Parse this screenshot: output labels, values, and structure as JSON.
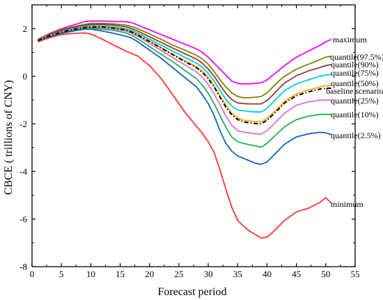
{
  "chart_data": {
    "type": "line",
    "xlabel": "Forecast period",
    "ylabel": "CBCE ( trillions of CNY)",
    "xlim": [
      0,
      55
    ],
    "ylim": [
      -8,
      3
    ],
    "xticks": [
      0,
      5,
      10,
      15,
      20,
      25,
      30,
      35,
      40,
      45,
      50,
      55
    ],
    "yticks": [
      -8,
      -6,
      -4,
      -2,
      0,
      2
    ],
    "grid": false,
    "legend": "inline labels at right end of each series",
    "x": [
      1,
      3,
      5,
      7,
      9,
      10,
      12,
      14,
      16,
      17,
      18,
      20,
      22,
      24,
      26,
      28,
      29,
      30,
      31,
      32,
      33,
      34,
      35,
      36,
      37,
      38,
      39,
      40,
      41,
      42,
      43,
      45,
      47,
      49,
      50,
      51
    ],
    "series": [
      {
        "name": "maximum",
        "color": "#ff00ff",
        "dash": "solid",
        "values": [
          1.55,
          1.8,
          2.0,
          2.15,
          2.3,
          2.32,
          2.32,
          2.3,
          2.29,
          2.25,
          2.15,
          1.95,
          1.75,
          1.55,
          1.35,
          1.15,
          1.0,
          0.8,
          0.55,
          0.3,
          0.05,
          -0.2,
          -0.3,
          -0.32,
          -0.32,
          -0.3,
          -0.28,
          -0.15,
          0.05,
          0.25,
          0.45,
          0.8,
          1.05,
          1.3,
          1.45,
          1.55
        ]
      },
      {
        "name": "quantile(97.5%)",
        "color": "#808000",
        "dash": "solid",
        "values": [
          1.55,
          1.78,
          1.95,
          2.08,
          2.18,
          2.22,
          2.22,
          2.2,
          2.15,
          2.08,
          2.0,
          1.78,
          1.55,
          1.3,
          1.1,
          0.88,
          0.72,
          0.5,
          0.2,
          -0.15,
          -0.45,
          -0.7,
          -0.85,
          -0.9,
          -0.9,
          -0.88,
          -0.85,
          -0.7,
          -0.45,
          -0.2,
          0.0,
          0.3,
          0.5,
          0.7,
          0.8,
          0.85
        ]
      },
      {
        "name": "quantile(90%)",
        "color": "#8b3a3a",
        "dash": "solid",
        "values": [
          1.53,
          1.75,
          1.92,
          2.05,
          2.15,
          2.18,
          2.18,
          2.15,
          2.08,
          2.0,
          1.9,
          1.66,
          1.42,
          1.18,
          0.95,
          0.72,
          0.55,
          0.3,
          0.0,
          -0.38,
          -0.72,
          -0.98,
          -1.12,
          -1.15,
          -1.16,
          -1.16,
          -1.16,
          -1.02,
          -0.78,
          -0.52,
          -0.28,
          0.02,
          0.22,
          0.37,
          0.45,
          0.5
        ]
      },
      {
        "name": "quantile(75%)",
        "color": "#00ced1",
        "dash": "solid",
        "values": [
          1.52,
          1.72,
          1.88,
          2.0,
          2.1,
          2.12,
          2.12,
          2.08,
          2.0,
          1.92,
          1.82,
          1.56,
          1.3,
          1.05,
          0.8,
          0.55,
          0.38,
          0.12,
          -0.2,
          -0.6,
          -0.98,
          -1.25,
          -1.42,
          -1.45,
          -1.48,
          -1.5,
          -1.5,
          -1.35,
          -1.1,
          -0.85,
          -0.6,
          -0.32,
          -0.15,
          -0.0,
          0.05,
          0.08
        ]
      },
      {
        "name": "quantile(50%)",
        "color": "#ffa500",
        "dash": "solid",
        "values": [
          1.5,
          1.7,
          1.85,
          1.98,
          2.06,
          2.08,
          2.08,
          2.03,
          1.95,
          1.86,
          1.75,
          1.48,
          1.2,
          0.92,
          0.65,
          0.4,
          0.2,
          -0.05,
          -0.4,
          -0.82,
          -1.22,
          -1.55,
          -1.75,
          -1.85,
          -1.88,
          -1.9,
          -1.92,
          -1.78,
          -1.55,
          -1.3,
          -1.05,
          -0.75,
          -0.58,
          -0.45,
          -0.4,
          -0.38
        ]
      },
      {
        "name": "baseline scenario",
        "color": "#000000",
        "dash": "6,3,1.5,3",
        "values": [
          1.5,
          1.7,
          1.85,
          1.97,
          2.05,
          2.07,
          2.07,
          2.02,
          1.94,
          1.85,
          1.73,
          1.46,
          1.18,
          0.9,
          0.62,
          0.36,
          0.16,
          -0.1,
          -0.45,
          -0.88,
          -1.3,
          -1.62,
          -1.82,
          -1.92,
          -1.96,
          -1.98,
          -2.0,
          -1.85,
          -1.62,
          -1.38,
          -1.12,
          -0.82,
          -0.66,
          -0.54,
          -0.5,
          -0.5
        ]
      },
      {
        "name": "quantile(25%)",
        "color": "#da70d6",
        "dash": "solid",
        "values": [
          1.48,
          1.67,
          1.82,
          1.94,
          2.02,
          2.04,
          2.03,
          1.98,
          1.9,
          1.8,
          1.68,
          1.38,
          1.08,
          0.78,
          0.48,
          0.18,
          -0.05,
          -0.35,
          -0.75,
          -1.2,
          -1.68,
          -2.05,
          -2.28,
          -2.35,
          -2.38,
          -2.42,
          -2.42,
          -2.28,
          -2.05,
          -1.8,
          -1.55,
          -1.22,
          -1.08,
          -1.0,
          -1.0,
          -1.0
        ]
      },
      {
        "name": "quantile(10%)",
        "color": "#20b050",
        "dash": "solid",
        "values": [
          1.48,
          1.66,
          1.8,
          1.92,
          2.0,
          2.01,
          1.98,
          1.92,
          1.82,
          1.72,
          1.58,
          1.25,
          0.92,
          0.6,
          0.25,
          -0.1,
          -0.38,
          -0.72,
          -1.15,
          -1.65,
          -2.15,
          -2.55,
          -2.75,
          -2.82,
          -2.88,
          -2.92,
          -2.98,
          -2.82,
          -2.58,
          -2.35,
          -2.12,
          -1.82,
          -1.68,
          -1.6,
          -1.6,
          -1.6
        ]
      },
      {
        "name": "quantile(2.5%)",
        "color": "#1560bd",
        "dash": "solid",
        "values": [
          1.47,
          1.65,
          1.8,
          1.9,
          1.98,
          1.98,
          1.9,
          1.8,
          1.68,
          1.6,
          1.45,
          1.1,
          0.75,
          0.35,
          -0.05,
          -0.45,
          -0.78,
          -1.15,
          -1.65,
          -2.3,
          -2.82,
          -3.15,
          -3.35,
          -3.45,
          -3.55,
          -3.65,
          -3.7,
          -3.6,
          -3.35,
          -3.1,
          -2.85,
          -2.55,
          -2.42,
          -2.35,
          -2.38,
          -2.45
        ]
      },
      {
        "name": "minimum",
        "color": "#ff3333",
        "dash": "solid",
        "values": [
          1.45,
          1.62,
          1.75,
          1.8,
          1.82,
          1.78,
          1.55,
          1.3,
          1.05,
          0.95,
          0.85,
          0.45,
          -0.1,
          -0.8,
          -1.5,
          -2.1,
          -2.4,
          -2.75,
          -3.2,
          -3.95,
          -4.75,
          -5.5,
          -6.05,
          -6.3,
          -6.5,
          -6.65,
          -6.8,
          -6.75,
          -6.55,
          -6.3,
          -6.05,
          -5.7,
          -5.55,
          -5.3,
          -5.1,
          -5.35
        ]
      }
    ]
  }
}
